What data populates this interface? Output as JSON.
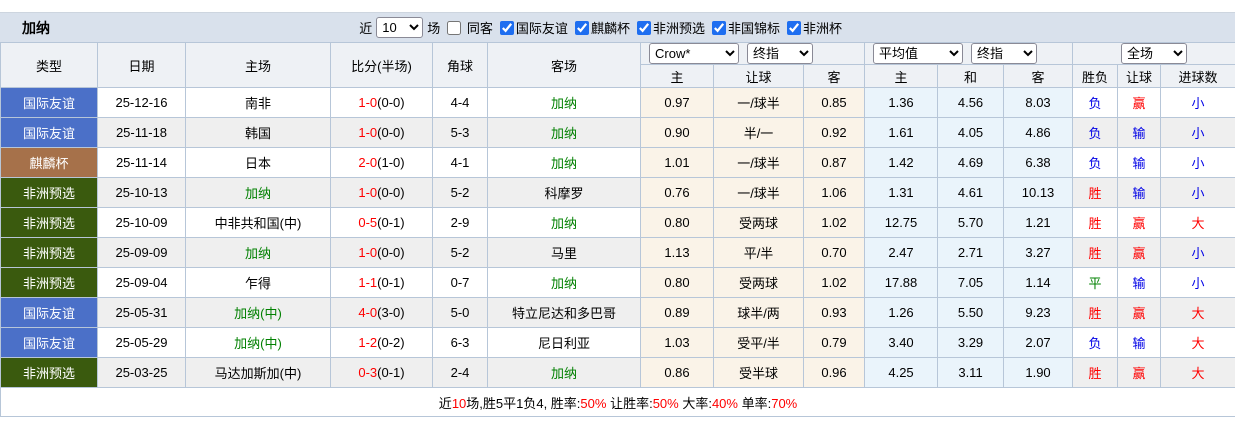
{
  "header": {
    "team": "加纳",
    "filter": {
      "recent_label": "近",
      "recent_value": "10",
      "matches_label": "场",
      "same_venue_label": "同客",
      "same_venue_checked": false,
      "competitions": [
        {
          "label": "国际友谊",
          "checked": true
        },
        {
          "label": "麒麟杯",
          "checked": true
        },
        {
          "label": "非洲预选",
          "checked": true
        },
        {
          "label": "非国锦标",
          "checked": true
        },
        {
          "label": "非洲杯",
          "checked": true
        }
      ]
    }
  },
  "selectors": {
    "odds_source": "Crow*",
    "odds_time": "终指",
    "avg_source": "平均值",
    "avg_time": "终指",
    "scope": "全场"
  },
  "columns": [
    "类型",
    "日期",
    "主场",
    "比分(半场)",
    "角球",
    "客场",
    "主",
    "让球",
    "客",
    "主",
    "和",
    "客",
    "胜负",
    "让球",
    "进球数"
  ],
  "rows": [
    {
      "badge": "friendly",
      "type": "国际友谊",
      "date": "25-12-16",
      "home": "南非",
      "home_green": false,
      "score": "1-0",
      "halftime": "(0-0)",
      "corners": "4-4",
      "away": "加纳",
      "away_green": true,
      "crow_home": "0.97",
      "handicap": "一/球半",
      "crow_away": "0.85",
      "avg_home": "1.36",
      "avg_draw": "4.56",
      "avg_away": "8.03",
      "result": {
        "text": "负",
        "color": "blue"
      },
      "handicap_result": {
        "text": "赢",
        "color": "red"
      },
      "goals": {
        "text": "小",
        "color": "blue"
      }
    },
    {
      "badge": "friendly",
      "type": "国际友谊",
      "date": "25-11-18",
      "home": "韩国",
      "home_green": false,
      "score": "1-0",
      "halftime": "(0-0)",
      "corners": "5-3",
      "away": "加纳",
      "away_green": true,
      "crow_home": "0.90",
      "handicap": "半/一",
      "crow_away": "0.92",
      "avg_home": "1.61",
      "avg_draw": "4.05",
      "avg_away": "4.86",
      "result": {
        "text": "负",
        "color": "blue"
      },
      "handicap_result": {
        "text": "输",
        "color": "blue"
      },
      "goals": {
        "text": "小",
        "color": "blue"
      }
    },
    {
      "badge": "kirin",
      "type": "麒麟杯",
      "date": "25-11-14",
      "home": "日本",
      "home_green": false,
      "score": "2-0",
      "halftime": "(1-0)",
      "corners": "4-1",
      "away": "加纳",
      "away_green": true,
      "crow_home": "1.01",
      "handicap": "一/球半",
      "crow_away": "0.87",
      "avg_home": "1.42",
      "avg_draw": "4.69",
      "avg_away": "6.38",
      "result": {
        "text": "负",
        "color": "blue"
      },
      "handicap_result": {
        "text": "输",
        "color": "blue"
      },
      "goals": {
        "text": "小",
        "color": "blue"
      }
    },
    {
      "badge": "afq",
      "type": "非洲预选",
      "date": "25-10-13",
      "home": "加纳",
      "home_green": true,
      "score": "1-0",
      "halftime": "(0-0)",
      "corners": "5-2",
      "away": "科摩罗",
      "away_green": false,
      "crow_home": "0.76",
      "handicap": "一/球半",
      "crow_away": "1.06",
      "avg_home": "1.31",
      "avg_draw": "4.61",
      "avg_away": "10.13",
      "result": {
        "text": "胜",
        "color": "red"
      },
      "handicap_result": {
        "text": "输",
        "color": "blue"
      },
      "goals": {
        "text": "小",
        "color": "blue"
      }
    },
    {
      "badge": "afq",
      "type": "非洲预选",
      "date": "25-10-09",
      "home": "中非共和国(中)",
      "home_green": false,
      "score": "0-5",
      "halftime": "(0-1)",
      "corners": "2-9",
      "away": "加纳",
      "away_green": true,
      "crow_home": "0.80",
      "handicap": "受两球",
      "crow_away": "1.02",
      "avg_home": "12.75",
      "avg_draw": "5.70",
      "avg_away": "1.21",
      "result": {
        "text": "胜",
        "color": "red"
      },
      "handicap_result": {
        "text": "赢",
        "color": "red"
      },
      "goals": {
        "text": "大",
        "color": "red"
      }
    },
    {
      "badge": "afq",
      "type": "非洲预选",
      "date": "25-09-09",
      "home": "加纳",
      "home_green": true,
      "score": "1-0",
      "halftime": "(0-0)",
      "corners": "5-2",
      "away": "马里",
      "away_green": false,
      "crow_home": "1.13",
      "handicap": "平/半",
      "crow_away": "0.70",
      "avg_home": "2.47",
      "avg_draw": "2.71",
      "avg_away": "3.27",
      "result": {
        "text": "胜",
        "color": "red"
      },
      "handicap_result": {
        "text": "赢",
        "color": "red"
      },
      "goals": {
        "text": "小",
        "color": "blue"
      }
    },
    {
      "badge": "afq",
      "type": "非洲预选",
      "date": "25-09-04",
      "home": "乍得",
      "home_green": false,
      "score": "1-1",
      "halftime": "(0-1)",
      "corners": "0-7",
      "away": "加纳",
      "away_green": true,
      "crow_home": "0.80",
      "handicap": "受两球",
      "crow_away": "1.02",
      "avg_home": "17.88",
      "avg_draw": "7.05",
      "avg_away": "1.14",
      "result": {
        "text": "平",
        "color": "green"
      },
      "handicap_result": {
        "text": "输",
        "color": "blue"
      },
      "goals": {
        "text": "小",
        "color": "blue"
      }
    },
    {
      "badge": "friendly",
      "type": "国际友谊",
      "date": "25-05-31",
      "home": "加纳(中)",
      "home_green": true,
      "score": "4-0",
      "halftime": "(3-0)",
      "corners": "5-0",
      "away": "特立尼达和多巴哥",
      "away_green": false,
      "crow_home": "0.89",
      "handicap": "球半/两",
      "crow_away": "0.93",
      "avg_home": "1.26",
      "avg_draw": "5.50",
      "avg_away": "9.23",
      "result": {
        "text": "胜",
        "color": "red"
      },
      "handicap_result": {
        "text": "赢",
        "color": "red"
      },
      "goals": {
        "text": "大",
        "color": "red"
      }
    },
    {
      "badge": "friendly",
      "type": "国际友谊",
      "date": "25-05-29",
      "home": "加纳(中)",
      "home_green": true,
      "score": "1-2",
      "halftime": "(0-2)",
      "corners": "6-3",
      "away": "尼日利亚",
      "away_green": false,
      "crow_home": "1.03",
      "handicap": "受平/半",
      "crow_away": "0.79",
      "avg_home": "3.40",
      "avg_draw": "3.29",
      "avg_away": "2.07",
      "result": {
        "text": "负",
        "color": "blue"
      },
      "handicap_result": {
        "text": "输",
        "color": "blue"
      },
      "goals": {
        "text": "大",
        "color": "red"
      }
    },
    {
      "badge": "afq",
      "type": "非洲预选",
      "date": "25-03-25",
      "home": "马达加斯加(中)",
      "home_green": false,
      "score": "0-3",
      "halftime": "(0-1)",
      "corners": "2-4",
      "away": "加纳",
      "away_green": true,
      "crow_home": "0.86",
      "handicap": "受半球",
      "crow_away": "0.96",
      "avg_home": "4.25",
      "avg_draw": "3.11",
      "avg_away": "1.90",
      "result": {
        "text": "胜",
        "color": "red"
      },
      "handicap_result": {
        "text": "赢",
        "color": "red"
      },
      "goals": {
        "text": "大",
        "color": "red"
      }
    }
  ],
  "footer": {
    "segments": [
      {
        "text": "近",
        "color": "black"
      },
      {
        "text": "10",
        "color": "red"
      },
      {
        "text": "场,胜5平1负4, 胜率:",
        "color": "black"
      },
      {
        "text": "50%",
        "color": "red"
      },
      {
        "text": " 让胜率:",
        "color": "black"
      },
      {
        "text": "50%",
        "color": "red"
      },
      {
        "text": " 大率:",
        "color": "black"
      },
      {
        "text": "40%",
        "color": "red"
      },
      {
        "text": " 单率:",
        "color": "black"
      },
      {
        "text": "70%",
        "color": "red"
      }
    ]
  },
  "colors": {
    "badge_friendly": "#4B70C8",
    "badge_kirin": "#A6714A",
    "badge_afq": "#3A5A0E",
    "red": "#FF0000",
    "blue": "#0000E6",
    "green": "#008000",
    "header_bar": "#D9E1EC"
  }
}
